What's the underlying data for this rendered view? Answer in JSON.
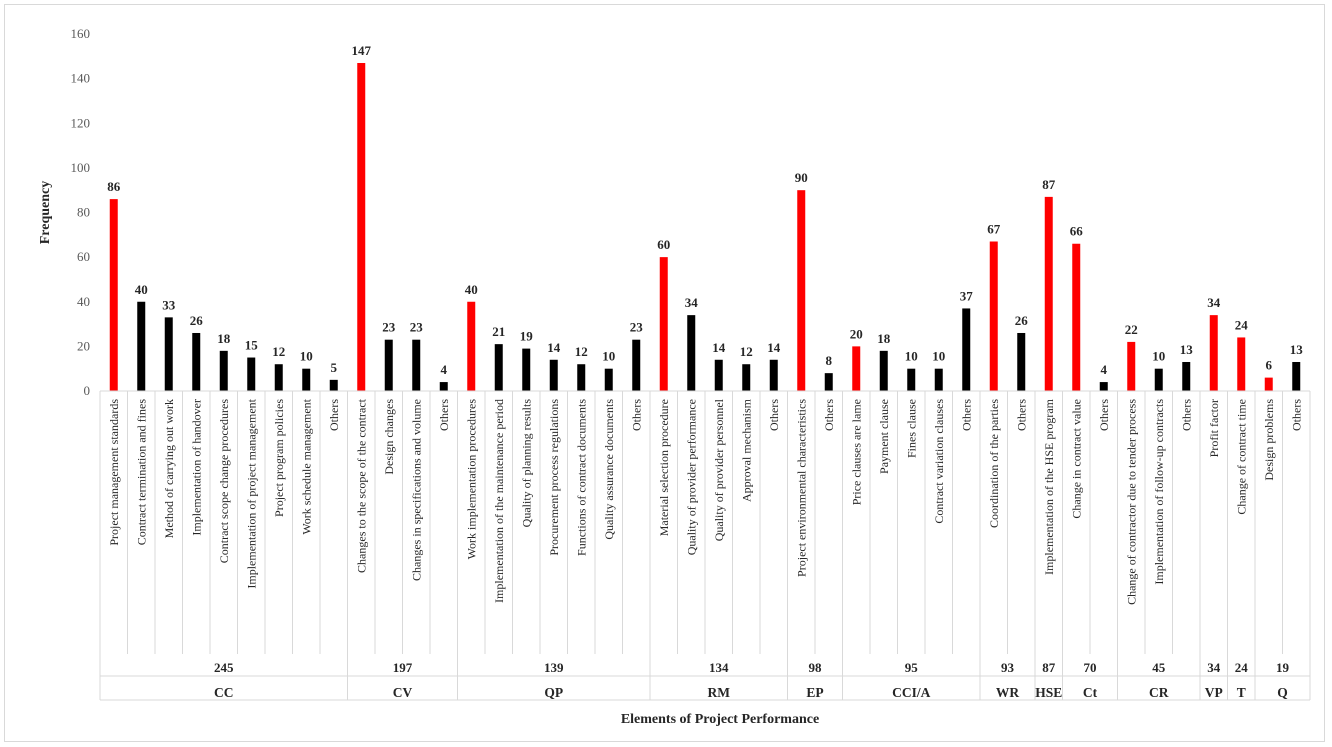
{
  "chart_data": {
    "type": "bar",
    "title": "",
    "xlabel": "Elements of Project Performance",
    "ylabel": "Frequency",
    "ylim": [
      0,
      160
    ],
    "yticks": [
      0,
      20,
      40,
      60,
      80,
      100,
      120,
      140,
      160
    ],
    "grid": false,
    "legend": "none",
    "colors": {
      "highlight": "#ff0000",
      "normal": "#000000"
    },
    "groups": [
      {
        "name": "CC",
        "total": "245",
        "bars": [
          {
            "label": "Project management standards",
            "value": 86,
            "highlight": true
          },
          {
            "label": "Contract termination and fines",
            "value": 40,
            "highlight": false
          },
          {
            "label": "Method of carrying out work",
            "value": 33,
            "highlight": false
          },
          {
            "label": "Implementation of handover",
            "value": 26,
            "highlight": false
          },
          {
            "label": "Contract scope change procedures",
            "value": 18,
            "highlight": false
          },
          {
            "label": "Implementation of project management",
            "value": 15,
            "highlight": false
          },
          {
            "label": "Project program policies",
            "value": 12,
            "highlight": false
          },
          {
            "label": "Work schedule management",
            "value": 10,
            "highlight": false
          },
          {
            "label": "Others",
            "value": 5,
            "highlight": false
          }
        ]
      },
      {
        "name": "CV",
        "total": "197",
        "bars": [
          {
            "label": "Changes to the scope of the contract",
            "value": 147,
            "highlight": true
          },
          {
            "label": "Design changes",
            "value": 23,
            "highlight": false
          },
          {
            "label": "Changes in specifications and volume",
            "value": 23,
            "highlight": false
          },
          {
            "label": "Others",
            "value": 4,
            "highlight": false
          }
        ]
      },
      {
        "name": "QP",
        "total": "139",
        "bars": [
          {
            "label": "Work implementation procedures",
            "value": 40,
            "highlight": true
          },
          {
            "label": "Implementation of the maintenance period",
            "value": 21,
            "highlight": false
          },
          {
            "label": "Quality of planning results",
            "value": 19,
            "highlight": false
          },
          {
            "label": "Procurement process regulations",
            "value": 14,
            "highlight": false
          },
          {
            "label": "Functions of contract documents",
            "value": 12,
            "highlight": false
          },
          {
            "label": "Quality assurance documents",
            "value": 10,
            "highlight": false
          },
          {
            "label": "Others",
            "value": 23,
            "highlight": false
          }
        ]
      },
      {
        "name": "RM",
        "total": "134",
        "bars": [
          {
            "label": "Material selection procedure",
            "value": 60,
            "highlight": true
          },
          {
            "label": "Quality of provider performance",
            "value": 34,
            "highlight": false
          },
          {
            "label": "Quality of provider personnel",
            "value": 14,
            "highlight": false
          },
          {
            "label": "Approval mechanism",
            "value": 12,
            "highlight": false
          },
          {
            "label": "Others",
            "value": 14,
            "highlight": false
          }
        ]
      },
      {
        "name": "EP",
        "total": "98",
        "bars": [
          {
            "label": "Project environmental characteristics",
            "value": 90,
            "highlight": true
          },
          {
            "label": "Others",
            "value": 8,
            "highlight": false
          }
        ]
      },
      {
        "name": "CCI/A",
        "total": "95",
        "bars": [
          {
            "label": "Price clauses are lame",
            "value": 20,
            "highlight": true
          },
          {
            "label": "Payment clause",
            "value": 18,
            "highlight": false
          },
          {
            "label": "Fines clause",
            "value": 10,
            "highlight": false
          },
          {
            "label": "Contract variation clauses",
            "value": 10,
            "highlight": false
          },
          {
            "label": "Others",
            "value": 37,
            "highlight": false
          }
        ]
      },
      {
        "name": "WR",
        "total": "93",
        "bars": [
          {
            "label": "Coordination of the parties",
            "value": 67,
            "highlight": true
          },
          {
            "label": "Others",
            "value": 26,
            "highlight": false
          }
        ]
      },
      {
        "name": "HSE",
        "total": "87",
        "bars": [
          {
            "label": "Implementation of the HSE program",
            "value": 87,
            "highlight": true
          }
        ]
      },
      {
        "name": "Ct",
        "total": "70",
        "bars": [
          {
            "label": "Change in contract value",
            "value": 66,
            "highlight": true
          },
          {
            "label": "Others",
            "value": 4,
            "highlight": false
          }
        ]
      },
      {
        "name": "CR",
        "total": "45",
        "bars": [
          {
            "label": "Change of contractor due to tender process",
            "value": 22,
            "highlight": true
          },
          {
            "label": "Implementation of follow-up contracts",
            "value": 10,
            "highlight": false
          },
          {
            "label": "Others",
            "value": 13,
            "highlight": false
          }
        ]
      },
      {
        "name": "VP",
        "total": "34",
        "bars": [
          {
            "label": "Profit factor",
            "value": 34,
            "highlight": true
          }
        ]
      },
      {
        "name": "T",
        "total": "24",
        "bars": [
          {
            "label": "Change of contract time",
            "value": 24,
            "highlight": true
          }
        ]
      },
      {
        "name": "Q",
        "total": "19",
        "bars": [
          {
            "label": "Design problems",
            "value": 6,
            "highlight": true
          },
          {
            "label": "Others",
            "value": 13,
            "highlight": false
          }
        ]
      }
    ]
  }
}
